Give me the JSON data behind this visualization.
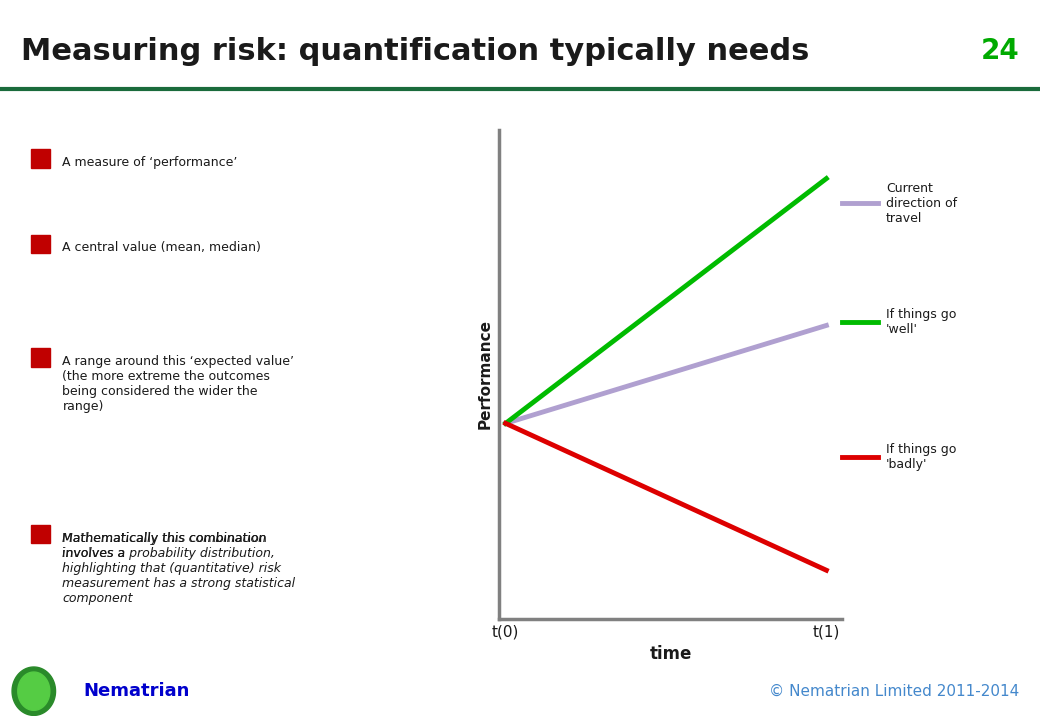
{
  "title": "Measuring risk: quantification typically needs",
  "slide_number": "24",
  "title_color": "#1a1a1a",
  "title_bg_color": "#ffffff",
  "title_underline_color": "#1a6b3c",
  "slide_number_color": "#00aa00",
  "bullet_color": "#c00000",
  "bullet_points": [
    "A measure of ‘performance’",
    "A central value (mean, median)",
    "A range around this ‘expected value’\n(the more extreme the outcomes\nbeing considered the wider the\nrange)",
    "Mathematically this combination\ninvolves a *probability distribution*,\nhighlighting that (quantitative) risk\nmeasurement has a strong statistical\ncomponent"
  ],
  "chart": {
    "ylabel": "Performance",
    "xlabel": "time",
    "x_tick_labels": [
      "t(0)",
      "t(1)"
    ],
    "lines": [
      {
        "label": "Current\ndirection of\ntravel",
        "color": "#b0a0d0",
        "x": [
          0,
          1
        ],
        "y": [
          0.4,
          0.6
        ]
      },
      {
        "label": "If things go\n'well'",
        "color": "#00bb00",
        "x": [
          0,
          1
        ],
        "y": [
          0.4,
          0.9
        ]
      },
      {
        "label": "If things go\n'badly'",
        "color": "#dd0000",
        "x": [
          0,
          1
        ],
        "y": [
          0.4,
          0.1
        ]
      }
    ],
    "axis_color": "#808080",
    "line_width": 3.5
  },
  "footer_left": "Nematrian",
  "footer_left_color": "#0000cc",
  "footer_right": "© Nematrian Limited 2011-2014",
  "footer_right_color": "#4488cc",
  "background_color": "#ffffff"
}
